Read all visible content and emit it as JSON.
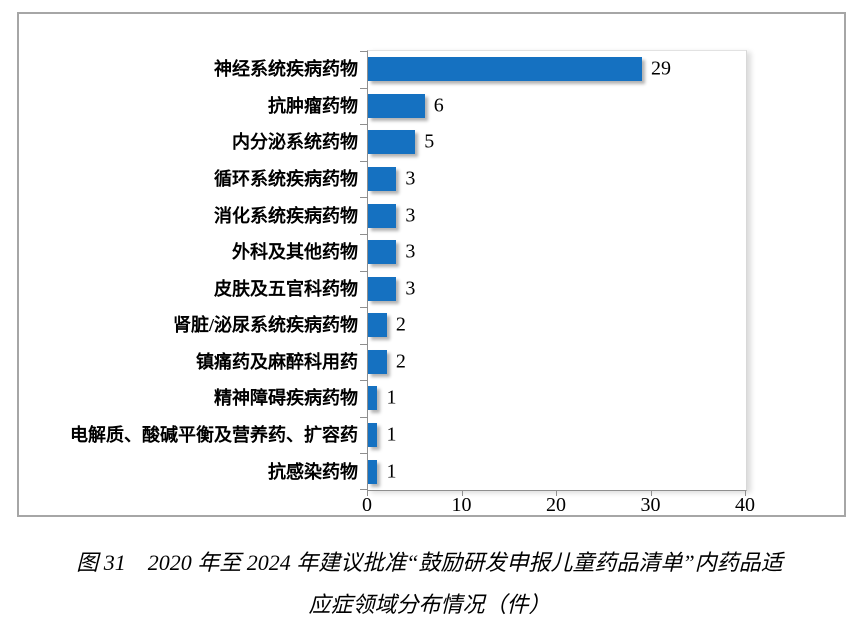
{
  "chart_data": {
    "type": "bar",
    "orientation": "horizontal",
    "categories": [
      "神经系统疾病药物",
      "抗肿瘤药物",
      "内分泌系统药物",
      "循环系统疾病药物",
      "消化系统疾病药物",
      "外科及其他药物",
      "皮肤及五官科药物",
      "肾脏/泌尿系统疾病药物",
      "镇痛药及麻醉科用药",
      "精神障碍疾病药物",
      "电解质、酸碱平衡及营养药、扩容药",
      "抗感染药物"
    ],
    "values": [
      29,
      6,
      5,
      3,
      3,
      3,
      3,
      2,
      2,
      1,
      1,
      1
    ],
    "x_ticks": [
      0,
      10,
      20,
      30,
      40
    ],
    "xlim": [
      0,
      40
    ],
    "bar_color": "#1571C1",
    "data_labels": true,
    "grid": false,
    "legend": false,
    "title": ""
  },
  "caption": {
    "line1": "图 31　2020 年至 2024 年建议批准“鼓励研发申报儿童药品清单”内药品适",
    "line2": "应症领域分布情况（件）"
  }
}
